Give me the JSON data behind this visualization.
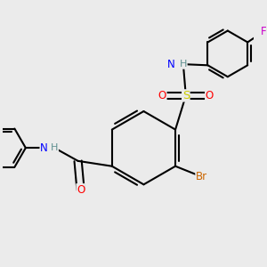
{
  "bg_color": "#ebebeb",
  "bond_color": "#000000",
  "bond_width": 1.5,
  "atom_colors": {
    "H": "#5f9090",
    "N": "#0000ff",
    "O": "#ff0000",
    "S": "#cccc00",
    "Br": "#cc6600",
    "F": "#cc00cc"
  },
  "font_size": 8.5,
  "figsize": [
    3.0,
    3.0
  ],
  "dpi": 100
}
